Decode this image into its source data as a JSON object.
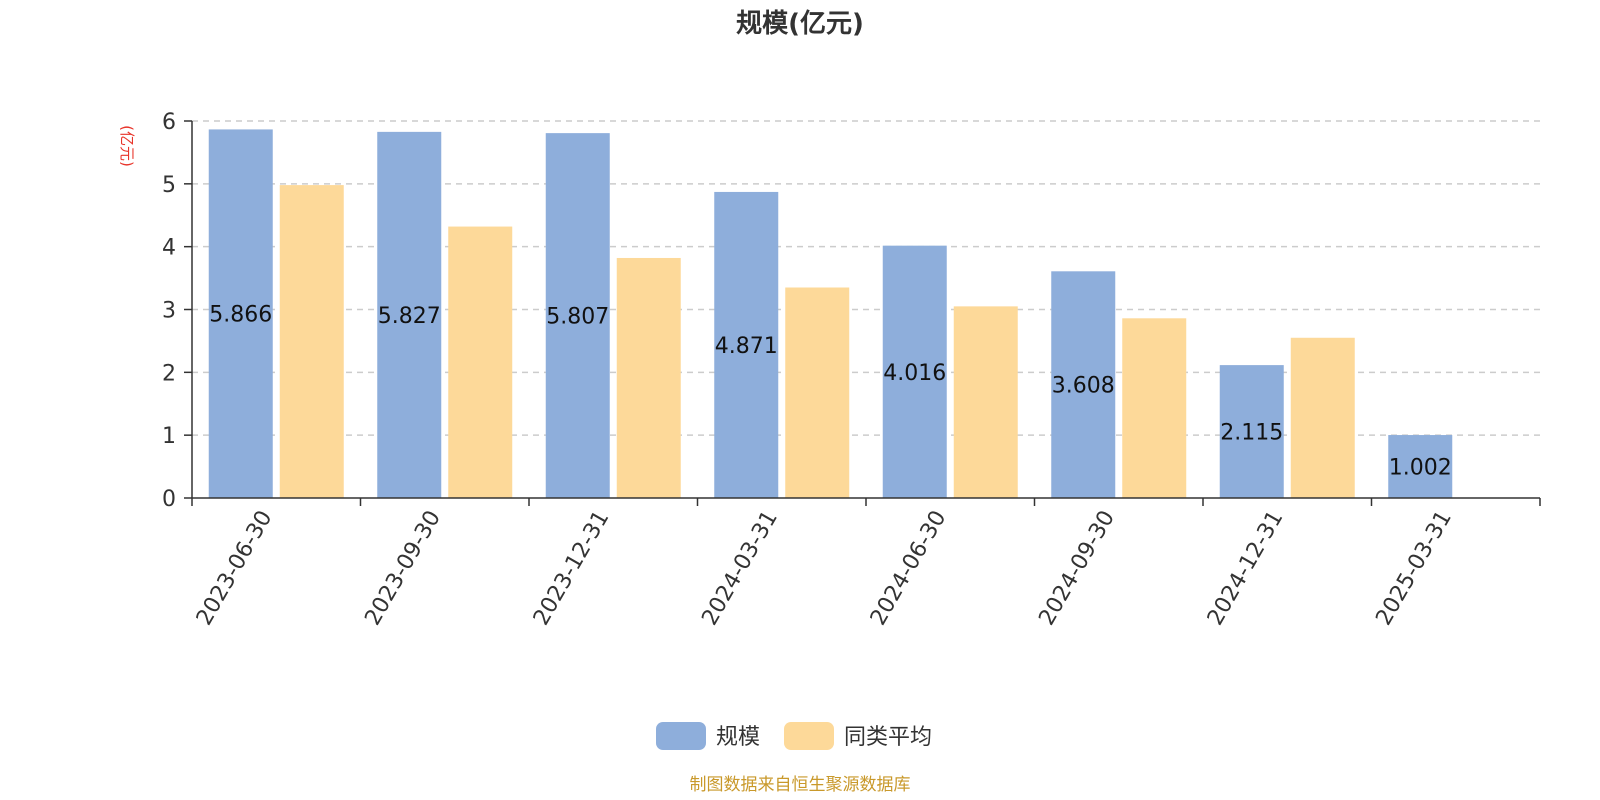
{
  "chart_data": {
    "type": "bar",
    "title": "规模(亿元)",
    "ylabel": "(亿元)",
    "ylim": [
      0,
      6
    ],
    "yticks": [
      0,
      1,
      2,
      3,
      4,
      5,
      6
    ],
    "grid": true,
    "legend_position": "bottom-center",
    "categories": [
      "2023-06-30",
      "2023-09-30",
      "2023-12-31",
      "2024-03-31",
      "2024-06-30",
      "2024-09-30",
      "2024-12-31",
      "2025-03-31"
    ],
    "series": [
      {
        "name": "规模",
        "color": "#8eaedb",
        "values": [
          5.866,
          5.827,
          5.807,
          4.871,
          4.016,
          3.608,
          2.115,
          1.002
        ],
        "labels": [
          "5.866",
          "5.827",
          "5.807",
          "4.871",
          "4.016",
          "3.608",
          "2.115",
          "1.002"
        ]
      },
      {
        "name": "同类平均",
        "color": "#fdd999",
        "values": [
          4.98,
          4.32,
          3.82,
          3.35,
          3.05,
          2.86,
          2.55,
          null
        ]
      }
    ]
  },
  "footer": {
    "source": "制图数据来自恒生聚源数据库"
  },
  "colors": {
    "unit_label": "#e8342a",
    "source_text": "#c9992b",
    "grid": "#cccccc",
    "axis": "#333333"
  }
}
